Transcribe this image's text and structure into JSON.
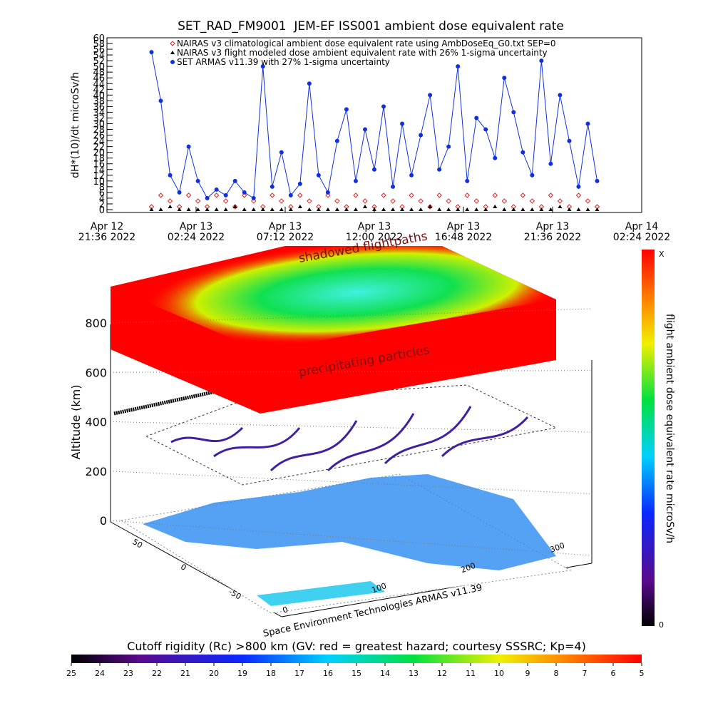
{
  "chart_data": [
    {
      "type": "line",
      "title": "SET_RAD_FM9001  JEM-EF ISS001 ambient dose equivalent rate",
      "ylabel": "dH*(10)/dt microSv/h",
      "legend": "upper left",
      "xlim": [
        "2022-04-12T21:36",
        "2022-04-14T02:24"
      ],
      "xticks": [
        {
          "value": "2022-04-12T21:36",
          "label": "Apr 12 21:36 2022"
        },
        {
          "value": "2022-04-13T02:24",
          "label": "Apr 13 02:24 2022"
        },
        {
          "value": "2022-04-13T07:12",
          "label": "Apr 13 07:12 2022"
        },
        {
          "value": "2022-04-13T12:00",
          "label": "Apr 13 12:00 2022"
        },
        {
          "value": "2022-04-13T16:48",
          "label": "Apr 13 16:48 2022"
        },
        {
          "value": "2022-04-13T21:36",
          "label": "Apr 13 21:36 2022"
        },
        {
          "value": "2022-04-14T02:24",
          "label": "Apr 14 02:24 2022"
        }
      ],
      "ylim": [
        -1,
        60
      ],
      "yticks": [
        0,
        2,
        4,
        6,
        8,
        10,
        12,
        14,
        16,
        18,
        20,
        22,
        24,
        26,
        28,
        30,
        32,
        34,
        36,
        38,
        40,
        42,
        44,
        46,
        48,
        50,
        52,
        54,
        56,
        58,
        60
      ],
      "x": [
        "2022-04-13T00:00",
        "2022-04-13T00:30",
        "2022-04-13T01:00",
        "2022-04-13T01:30",
        "2022-04-13T02:00",
        "2022-04-13T02:30",
        "2022-04-13T03:00",
        "2022-04-13T03:30",
        "2022-04-13T04:00",
        "2022-04-13T04:30",
        "2022-04-13T05:00",
        "2022-04-13T05:30",
        "2022-04-13T06:00",
        "2022-04-13T06:30",
        "2022-04-13T07:00",
        "2022-04-13T07:30",
        "2022-04-13T08:00",
        "2022-04-13T08:30",
        "2022-04-13T09:00",
        "2022-04-13T09:30",
        "2022-04-13T10:00",
        "2022-04-13T10:30",
        "2022-04-13T11:00",
        "2022-04-13T11:30",
        "2022-04-13T12:00",
        "2022-04-13T12:30",
        "2022-04-13T13:00",
        "2022-04-13T13:30",
        "2022-04-13T14:00",
        "2022-04-13T14:30",
        "2022-04-13T15:00",
        "2022-04-13T15:30",
        "2022-04-13T16:00",
        "2022-04-13T16:30",
        "2022-04-13T17:00",
        "2022-04-13T17:30",
        "2022-04-13T18:00",
        "2022-04-13T18:30",
        "2022-04-13T19:00",
        "2022-04-13T19:30",
        "2022-04-13T20:00",
        "2022-04-13T20:30",
        "2022-04-13T21:00",
        "2022-04-13T21:30",
        "2022-04-13T22:00",
        "2022-04-13T22:30",
        "2022-04-13T23:00",
        "2022-04-13T23:30",
        "2022-04-14T00:00"
      ],
      "series": [
        {
          "name": "NAIRAS v3 climatological ambient dose equivalent rate using AmbDoseEq_G0.txt SEP=0",
          "color": "#e8201c",
          "marker": "diamond",
          "values": [
            1,
            5,
            3,
            1,
            5,
            3,
            1,
            5,
            3,
            1,
            5,
            3,
            1,
            5,
            3,
            1,
            5,
            3,
            1,
            5,
            3,
            1,
            5,
            3,
            1,
            5,
            3,
            1,
            5,
            3,
            1,
            5,
            3,
            1,
            5,
            3,
            1,
            5,
            3,
            1,
            5,
            3,
            1,
            5,
            3,
            1,
            5,
            3,
            1
          ]
        },
        {
          "name": "NAIRAS v3 flight modeled dose ambient equivalent rate with 26% 1-sigma uncertainty",
          "color": "#000000",
          "marker": "triangle",
          "values": [
            0,
            0,
            1,
            0,
            0,
            0,
            0,
            0,
            0,
            1,
            0,
            0,
            0,
            0,
            0,
            0,
            1,
            0,
            0,
            0,
            0,
            0,
            0,
            1,
            0,
            0,
            0,
            0,
            0,
            0,
            1,
            0,
            0,
            0,
            0,
            0,
            0,
            1,
            0,
            0,
            0,
            0,
            0,
            0,
            1,
            0,
            0,
            0,
            0
          ]
        },
        {
          "name": "SET ARMAS v11.39 with 27% 1-sigma uncertainty",
          "color": "#1030e0",
          "marker": "circle",
          "values": [
            55,
            38,
            12,
            6,
            22,
            10,
            4,
            7,
            5,
            10,
            6,
            4,
            50,
            8,
            20,
            5,
            9,
            44,
            12,
            6,
            24,
            35,
            10,
            28,
            14,
            36,
            8,
            30,
            12,
            26,
            40,
            14,
            22,
            50,
            10,
            32,
            28,
            18,
            46,
            34,
            20,
            12,
            52,
            16,
            40,
            24,
            8,
            30,
            10
          ]
        }
      ]
    },
    {
      "type": "surface3d",
      "annotations": [
        "shadowed flightpaths",
        "precipitating particles"
      ],
      "zlabel": "Altitude (km)",
      "zlim": [
        0,
        800
      ],
      "zticks": [
        0,
        200,
        400,
        600,
        800
      ],
      "xticks": [
        0,
        100,
        200,
        300
      ],
      "yticks": [
        50,
        0,
        -50
      ],
      "credit": "Space Environment Technologies ARMAS v11.39",
      "colorbar": {
        "label": "flight ambient dose equivalent rate microSv/h",
        "ends": [
          "X",
          0
        ]
      },
      "colorbar2": {
        "title": "Cutoff rigidity (Rc) >800 km (GV: red = greatest hazard; courtesy SSSRC; Kp=4)",
        "lim": [
          25,
          5
        ],
        "ticks": [
          25,
          24,
          23,
          22,
          21,
          20,
          19,
          18,
          17,
          16,
          15,
          14,
          13,
          12,
          11,
          10,
          9,
          8,
          7,
          6,
          5
        ]
      }
    }
  ]
}
